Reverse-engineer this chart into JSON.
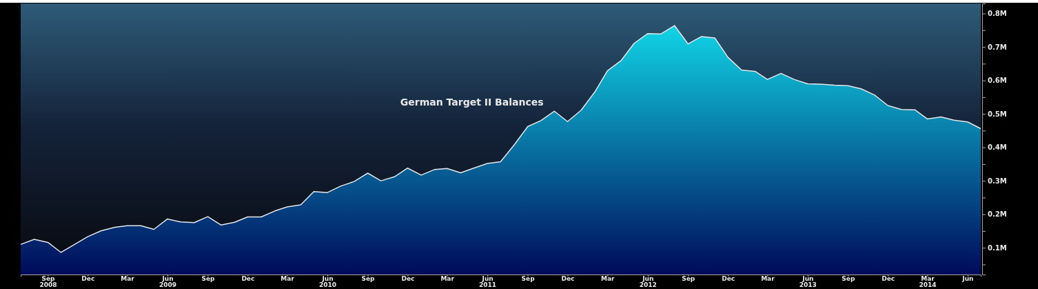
{
  "chart_data": {
    "type": "area",
    "title": "German Target II Balances",
    "x": [
      "2008-07",
      "2008-08",
      "2008-09",
      "2008-10",
      "2008-11",
      "2008-12",
      "2009-01",
      "2009-02",
      "2009-03",
      "2009-04",
      "2009-05",
      "2009-06",
      "2009-07",
      "2009-08",
      "2009-09",
      "2009-10",
      "2009-11",
      "2009-12",
      "2010-01",
      "2010-02",
      "2010-03",
      "2010-04",
      "2010-05",
      "2010-06",
      "2010-07",
      "2010-08",
      "2010-09",
      "2010-10",
      "2010-11",
      "2010-12",
      "2011-01",
      "2011-02",
      "2011-03",
      "2011-04",
      "2011-05",
      "2011-06",
      "2011-07",
      "2011-08",
      "2011-09",
      "2011-10",
      "2011-11",
      "2011-12",
      "2012-01",
      "2012-02",
      "2012-03",
      "2012-04",
      "2012-05",
      "2012-06",
      "2012-07",
      "2012-08",
      "2012-09",
      "2012-10",
      "2012-11",
      "2012-12",
      "2013-01",
      "2013-02",
      "2013-03",
      "2013-04",
      "2013-05",
      "2013-06",
      "2013-07",
      "2013-08",
      "2013-09",
      "2013-10",
      "2013-11",
      "2013-12",
      "2014-01",
      "2014-02",
      "2014-03",
      "2014-04",
      "2014-05",
      "2014-06",
      "2014-07"
    ],
    "series": [
      {
        "color": "#12e6f2",
        "values": [
          0.11,
          0.125,
          0.116,
          0.086,
          0.11,
          0.133,
          0.151,
          0.161,
          0.166,
          0.166,
          0.155,
          0.186,
          0.177,
          0.175,
          0.193,
          0.168,
          0.176,
          0.192,
          0.192,
          0.21,
          0.222,
          0.228,
          0.268,
          0.265,
          0.284,
          0.298,
          0.323,
          0.3,
          0.312,
          0.338,
          0.317,
          0.334,
          0.337,
          0.324,
          0.338,
          0.352,
          0.357,
          0.407,
          0.462,
          0.48,
          0.508,
          0.477,
          0.511,
          0.565,
          0.629,
          0.659,
          0.711,
          0.74,
          0.739,
          0.764,
          0.709,
          0.731,
          0.727,
          0.669,
          0.631,
          0.627,
          0.603,
          0.621,
          0.603,
          0.59,
          0.589,
          0.586,
          0.584,
          0.575,
          0.556,
          0.525,
          0.513,
          0.512,
          0.485,
          0.491,
          0.481,
          0.476,
          0.456
        ]
      }
    ],
    "xlim": [
      "2008-07",
      "2014-07"
    ],
    "xticks": [
      {
        "value": "2008-09",
        "label": "Sep\n2008"
      },
      {
        "value": "2008-12",
        "label": "Dec"
      },
      {
        "value": "2009-03",
        "label": "Mar"
      },
      {
        "value": "2009-06",
        "label": "Jun\n2009"
      },
      {
        "value": "2009-09",
        "label": "Sep"
      },
      {
        "value": "2009-12",
        "label": "Dec"
      },
      {
        "value": "2010-03",
        "label": "Mar"
      },
      {
        "value": "2010-06",
        "label": "Jun\n2010"
      },
      {
        "value": "2010-09",
        "label": "Sep"
      },
      {
        "value": "2010-12",
        "label": "Dec"
      },
      {
        "value": "2011-03",
        "label": "Mar"
      },
      {
        "value": "2011-06",
        "label": "Jun\n2011"
      },
      {
        "value": "2011-09",
        "label": "Sep"
      },
      {
        "value": "2011-12",
        "label": "Dec"
      },
      {
        "value": "2012-03",
        "label": "Mar"
      },
      {
        "value": "2012-06",
        "label": "Jun\n2012"
      },
      {
        "value": "2012-09",
        "label": "Sep"
      },
      {
        "value": "2012-12",
        "label": "Dec"
      },
      {
        "value": "2013-03",
        "label": "Mar"
      },
      {
        "value": "2013-06",
        "label": "Jun\n2013"
      },
      {
        "value": "2013-09",
        "label": "Sep"
      },
      {
        "value": "2013-12",
        "label": "Dec"
      },
      {
        "value": "2014-03",
        "label": "Mar\n2014"
      },
      {
        "value": "2014-06",
        "label": "Jun"
      }
    ],
    "ylim": [
      0.02,
      0.83
    ],
    "yticks": [
      {
        "value": 0.05,
        "label": null
      },
      {
        "value": 0.1,
        "label": "0.1M"
      },
      {
        "value": 0.15,
        "label": null
      },
      {
        "value": 0.2,
        "label": "0.2M"
      },
      {
        "value": 0.25,
        "label": null
      },
      {
        "value": 0.3,
        "label": "0.3M"
      },
      {
        "value": 0.35,
        "label": null
      },
      {
        "value": 0.4,
        "label": "0.4M"
      },
      {
        "value": 0.45,
        "label": null
      },
      {
        "value": 0.5,
        "label": "0.5M"
      },
      {
        "value": 0.55,
        "label": null
      },
      {
        "value": 0.6,
        "label": "0.6M"
      },
      {
        "value": 0.65,
        "label": null
      },
      {
        "value": 0.7,
        "label": "0.7M"
      },
      {
        "value": 0.75,
        "label": null
      },
      {
        "value": 0.8,
        "label": "0.8M"
      }
    ],
    "grid": false
  }
}
